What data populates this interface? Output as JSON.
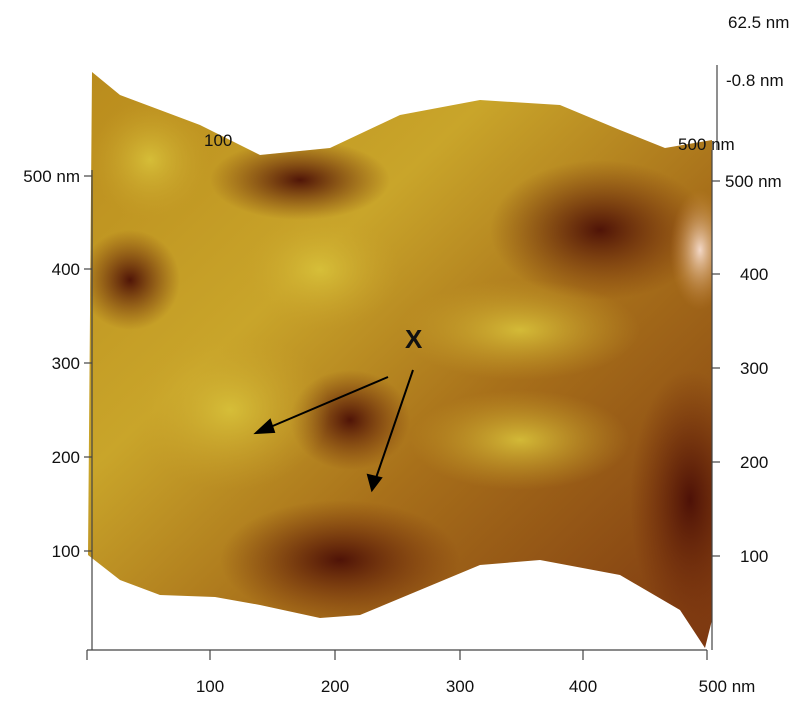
{
  "z_axis": {
    "max": "62.5 nm",
    "min": "-0.8 nm"
  },
  "left_axis": [
    "500 nm",
    "400",
    "300",
    "200",
    "100"
  ],
  "right_axis": [
    "500 nm",
    "400",
    "300",
    "200",
    "100"
  ],
  "bottom_axis": [
    "100",
    "200",
    "300",
    "400",
    "500 nm"
  ],
  "back_axis": [
    "100",
    "500 nm"
  ],
  "annotation": "X"
}
